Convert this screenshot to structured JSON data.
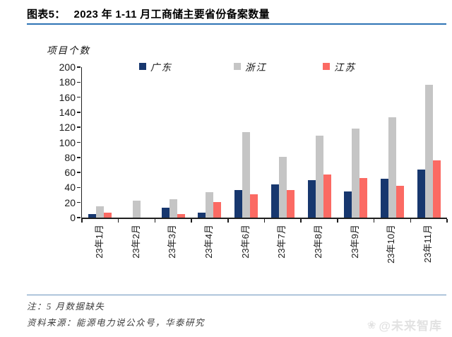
{
  "header": {
    "figure_label": "图表5：",
    "title": "2023 年 1-11 月工商储主要省份备案数量"
  },
  "chart_data": {
    "type": "bar",
    "title": "2023 年 1-11 月工商储主要省份备案数量",
    "ylabel": "项目个数",
    "xlabel": "",
    "ylim": [
      0,
      200
    ],
    "ytick_labels": [
      "0",
      "20",
      "40",
      "60",
      "80",
      "100",
      "120",
      "140",
      "160",
      "180",
      "200"
    ],
    "grid": false,
    "legend_position": "top",
    "categories": [
      "23年1月",
      "23年2月",
      "23年3月",
      "23年4月",
      "23年6月",
      "23年7月",
      "23年8月",
      "23年9月",
      "23年10月",
      "23年11月"
    ],
    "series": [
      {
        "name": "广东",
        "color": "#17376E",
        "values": [
          5,
          0,
          13,
          7,
          37,
          44,
          50,
          35,
          52,
          64
        ]
      },
      {
        "name": "浙江",
        "color": "#C5C5C5",
        "values": [
          15,
          23,
          24,
          34,
          114,
          81,
          109,
          118,
          133,
          177
        ]
      },
      {
        "name": "江苏",
        "color": "#FB6A63",
        "values": [
          7,
          0,
          5,
          21,
          31,
          37,
          57,
          53,
          42,
          76
        ]
      }
    ]
  },
  "footer": {
    "note": "注：5 月数据缺失",
    "source": "资料来源：能源电力说公众号，华泰研究",
    "watermark": "@未来智库",
    "watermark_icon_glyph": "❀"
  },
  "colors": {
    "title_rule": "#2E74B5",
    "note_rule": "#6A92BC",
    "axis": "#1F1F1F",
    "watermark_text": "#E2E2E2"
  }
}
